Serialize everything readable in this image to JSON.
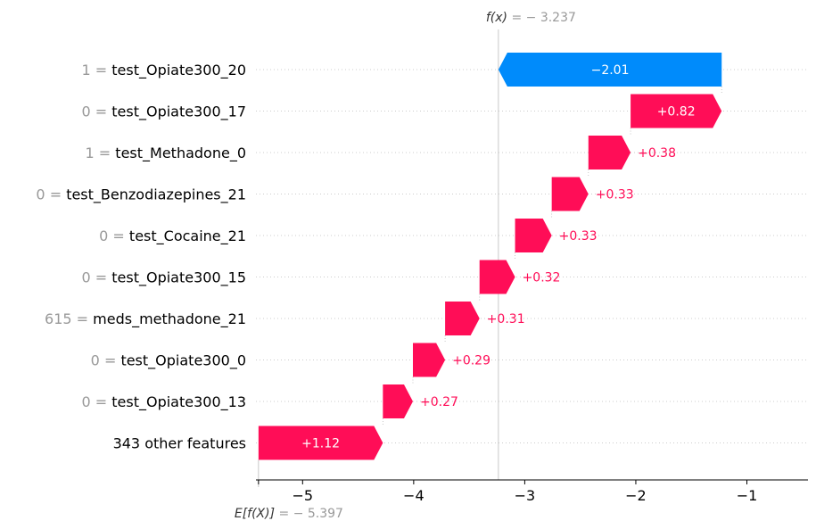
{
  "chart_data": {
    "type": "waterfall",
    "fx": {
      "label": "f(x)",
      "value_text": " = − 3.237",
      "value": -3.237
    },
    "base": {
      "label": "E[f(X)]",
      "value_text": " = − 5.397",
      "value": -5.397
    },
    "xlim": [
      -5.42,
      -0.45
    ],
    "xticks": [
      -5,
      -4,
      -3,
      -2,
      -1
    ],
    "xtick_labels": [
      "−5",
      "−4",
      "−3",
      "−2",
      "−1"
    ],
    "rows": [
      {
        "value_text": "1 = ",
        "feature": "test_Opiate300_20",
        "contribution": -2.01,
        "label": "−2.01"
      },
      {
        "value_text": "0 = ",
        "feature": "test_Opiate300_17",
        "contribution": 0.82,
        "label": "+0.82"
      },
      {
        "value_text": "1 = ",
        "feature": "test_Methadone_0",
        "contribution": 0.38,
        "label": "+0.38"
      },
      {
        "value_text": "0 = ",
        "feature": "test_Benzodiazepines_21",
        "contribution": 0.33,
        "label": "+0.33"
      },
      {
        "value_text": "0 = ",
        "feature": "test_Cocaine_21",
        "contribution": 0.33,
        "label": "+0.33"
      },
      {
        "value_text": "0 = ",
        "feature": "test_Opiate300_15",
        "contribution": 0.32,
        "label": "+0.32"
      },
      {
        "value_text": "615 = ",
        "feature": "meds_methadone_21",
        "contribution": 0.31,
        "label": "+0.31"
      },
      {
        "value_text": "0 = ",
        "feature": "test_Opiate300_0",
        "contribution": 0.29,
        "label": "+0.29"
      },
      {
        "value_text": "0 = ",
        "feature": "test_Opiate300_13",
        "contribution": 0.27,
        "label": "+0.27"
      },
      {
        "value_text": "",
        "feature": "343 other features",
        "contribution": 1.12,
        "label": "+1.12"
      }
    ],
    "colors": {
      "positive": "#ff0d57",
      "negative": "#008bfb",
      "label_gray": "#999999",
      "grid": "#cccccc"
    }
  }
}
